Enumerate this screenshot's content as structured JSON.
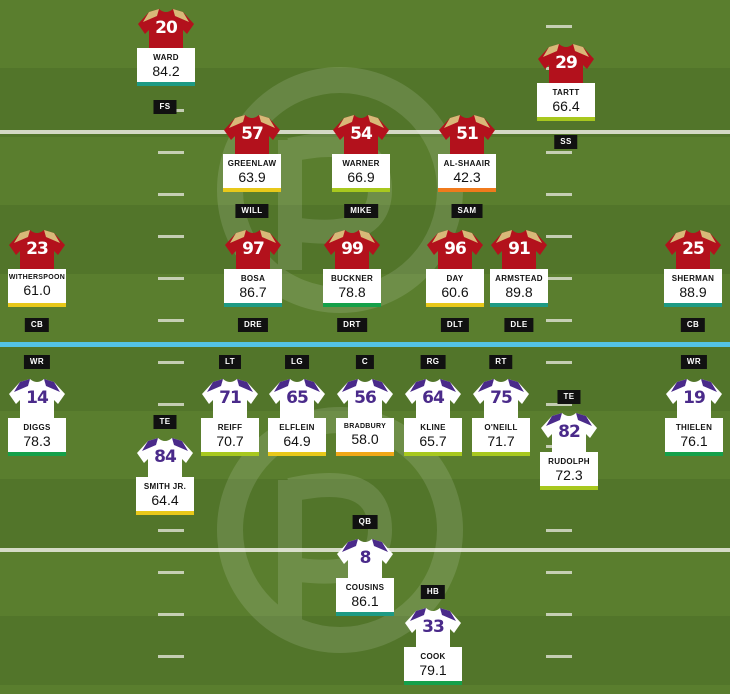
{
  "colors": {
    "field_dark": "#52752a",
    "field_light": "#5a7e2e",
    "line_of_scrimmage": "#53c3e6",
    "sf_jersey": "#b3111c",
    "sf_shoulder": "#d8b978",
    "min_jersey": "#ffffff",
    "min_sleeve": "#4a2a8a",
    "grade_green": "#15a04a",
    "grade_yellowgreen": "#a8c81e",
    "grade_yellow": "#e8c81a",
    "grade_orange": "#f07a1c",
    "grade_teal": "#1e9a84"
  },
  "defense": [
    {
      "number": "20",
      "name": "WARD",
      "grade": "84.2",
      "position": "FS",
      "grade_color": "#1e9a84"
    },
    {
      "number": "29",
      "name": "TARTT",
      "grade": "66.4",
      "position": "SS",
      "grade_color": "#a8c81e"
    },
    {
      "number": "57",
      "name": "GREENLAW",
      "grade": "63.9",
      "position": "WILL",
      "grade_color": "#e8c81a"
    },
    {
      "number": "54",
      "name": "WARNER",
      "grade": "66.9",
      "position": "MIKE",
      "grade_color": "#a8c81e"
    },
    {
      "number": "51",
      "name": "AL-SHAAIR",
      "grade": "42.3",
      "position": "SAM",
      "grade_color": "#f07a1c"
    },
    {
      "number": "23",
      "name": "WITHERSPOON",
      "grade": "61.0",
      "position": "CB",
      "grade_color": "#e8c81a"
    },
    {
      "number": "97",
      "name": "BOSA",
      "grade": "86.7",
      "position": "DRE",
      "grade_color": "#1e9a84"
    },
    {
      "number": "99",
      "name": "BUCKNER",
      "grade": "78.8",
      "position": "DRT",
      "grade_color": "#15a04a"
    },
    {
      "number": "96",
      "name": "DAY",
      "grade": "60.6",
      "position": "DLT",
      "grade_color": "#e8c81a"
    },
    {
      "number": "91",
      "name": "ARMSTEAD",
      "grade": "89.8",
      "position": "DLE",
      "grade_color": "#1e9a84"
    },
    {
      "number": "25",
      "name": "SHERMAN",
      "grade": "88.9",
      "position": "CB",
      "grade_color": "#1e9a84"
    }
  ],
  "offense": [
    {
      "number": "14",
      "name": "DIGGS",
      "grade": "78.3",
      "position": "WR",
      "grade_color": "#15a04a"
    },
    {
      "number": "71",
      "name": "REIFF",
      "grade": "70.7",
      "position": "LT",
      "grade_color": "#a8c81e"
    },
    {
      "number": "65",
      "name": "ELFLEIN",
      "grade": "64.9",
      "position": "LG",
      "grade_color": "#e8c81a"
    },
    {
      "number": "56",
      "name": "BRADBURY",
      "grade": "58.0",
      "position": "C",
      "grade_color": "#f0a818"
    },
    {
      "number": "64",
      "name": "KLINE",
      "grade": "65.7",
      "position": "RG",
      "grade_color": "#a8c81e"
    },
    {
      "number": "75",
      "name": "O'NEILL",
      "grade": "71.7",
      "position": "RT",
      "grade_color": "#a8c81e"
    },
    {
      "number": "19",
      "name": "THIELEN",
      "grade": "76.1",
      "position": "WR",
      "grade_color": "#15a04a"
    },
    {
      "number": "84",
      "name": "SMITH JR.",
      "grade": "64.4",
      "position": "TE",
      "grade_color": "#e8c81a"
    },
    {
      "number": "82",
      "name": "RUDOLPH",
      "grade": "72.3",
      "position": "TE",
      "grade_color": "#a8c81e"
    },
    {
      "number": "8",
      "name": "COUSINS",
      "grade": "86.1",
      "position": "QB",
      "grade_color": "#1e9a84"
    },
    {
      "number": "33",
      "name": "COOK",
      "grade": "79.1",
      "position": "HB",
      "grade_color": "#15a04a"
    }
  ]
}
